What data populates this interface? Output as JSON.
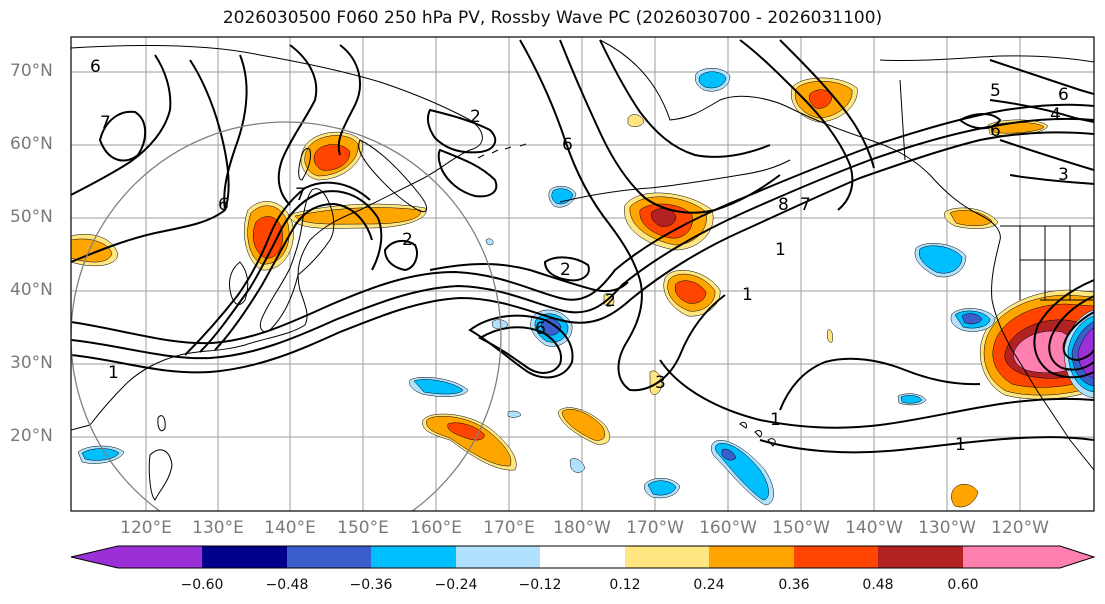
{
  "title": "2026030500 F060 250 hPa PV, Rossby Wave PC (2026030700 - 2026031100)",
  "latitude_labels": [
    "70°N",
    "60°N",
    "50°N",
    "40°N",
    "30°N",
    "20°N"
  ],
  "longitude_labels": [
    "120°E",
    "130°E",
    "140°E",
    "150°E",
    "160°E",
    "170°E",
    "180°W",
    "170°W",
    "160°W",
    "150°W",
    "140°W",
    "130°W",
    "120°W"
  ],
  "colorbar": {
    "ticks": [
      "−0.60",
      "−0.48",
      "−0.36",
      "−0.24",
      "−0.12",
      "0.12",
      "0.24",
      "0.36",
      "0.48",
      "0.60"
    ],
    "colors": [
      "#9b30d9",
      "#00008b",
      "#3a5fcd",
      "#00bfff",
      "#b0e2ff",
      "#ffffff",
      "#ffe680",
      "#ffa500",
      "#ff4500",
      "#b22222",
      "#ff7fb0"
    ]
  },
  "contour_labels": [
    "6",
    "7",
    "6",
    "7",
    "6",
    "2",
    "2",
    "2",
    "1",
    "1",
    "1",
    "1",
    "8",
    "7",
    "5",
    "6",
    "4",
    "6",
    "3",
    "6",
    "1",
    "3",
    "2"
  ],
  "colors": {
    "land_outline": "#000000",
    "grid": "#9e9e9e",
    "contour": "#000000",
    "circle": "#808080"
  }
}
